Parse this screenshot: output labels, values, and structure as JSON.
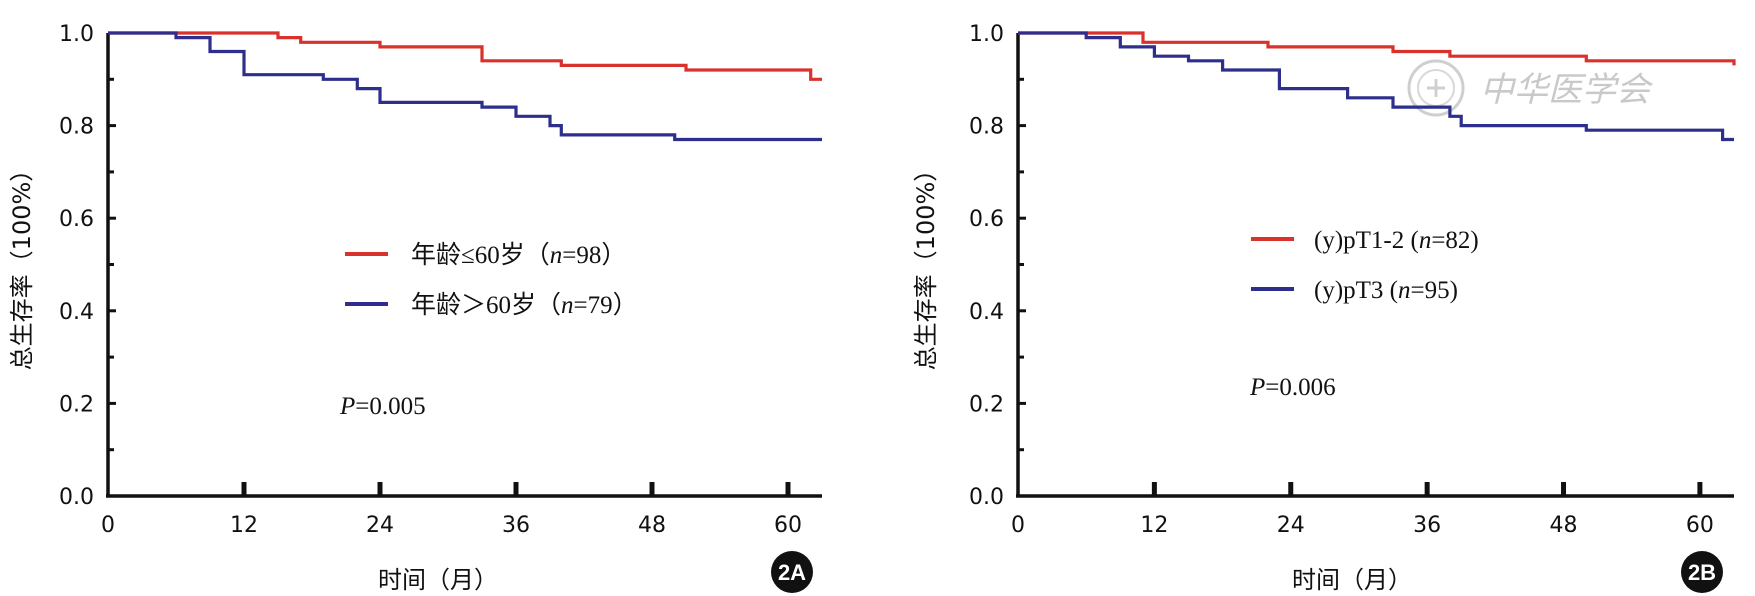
{
  "colors": {
    "red": "#d9312b",
    "blue": "#2e2f8c",
    "axis": "#111111"
  },
  "watermark": {
    "text": "中华医学会",
    "icon": "seal-icon"
  },
  "chart_data": [
    {
      "type": "line",
      "panel": "2A",
      "xlabel": "时间（月）",
      "ylabel": "总生存率（100%）",
      "xticks": [
        0,
        12,
        24,
        36,
        48,
        60
      ],
      "yticks": [
        "0.0",
        "0.2",
        "0.4",
        "0.6",
        "0.8",
        "1.0"
      ],
      "xlim": [
        0,
        63
      ],
      "ylim": [
        0,
        1
      ],
      "pvalue": {
        "label": "P",
        "value": "=0.005"
      },
      "series": [
        {
          "name": "年龄≤60岁",
          "legend_main": "年龄≤60岁（",
          "legend_n": "n",
          "legend_tail": "=98）",
          "color": "red",
          "steps": [
            [
              0,
              1.0
            ],
            [
              15,
              0.99
            ],
            [
              17,
              0.98
            ],
            [
              24,
              0.97
            ],
            [
              33,
              0.94
            ],
            [
              40,
              0.93
            ],
            [
              51,
              0.92
            ],
            [
              62,
              0.9
            ],
            [
              63,
              0.9
            ]
          ]
        },
        {
          "name": "年龄＞60岁",
          "legend_main": "年龄＞60岁（",
          "legend_n": "n",
          "legend_tail": "=79）",
          "color": "blue",
          "steps": [
            [
              0,
              1.0
            ],
            [
              6,
              0.99
            ],
            [
              9,
              0.96
            ],
            [
              12,
              0.91
            ],
            [
              19,
              0.9
            ],
            [
              22,
              0.88
            ],
            [
              24,
              0.85
            ],
            [
              33,
              0.84
            ],
            [
              36,
              0.82
            ],
            [
              39,
              0.8
            ],
            [
              40,
              0.78
            ],
            [
              50,
              0.77
            ],
            [
              63,
              0.77
            ]
          ]
        }
      ]
    },
    {
      "type": "line",
      "panel": "2B",
      "xlabel": "时间（月）",
      "ylabel": "总生存率（100%）",
      "xticks": [
        0,
        12,
        24,
        36,
        48,
        60
      ],
      "yticks": [
        "0.0",
        "0.2",
        "0.4",
        "0.6",
        "0.8",
        "1.0"
      ],
      "xlim": [
        0,
        63
      ],
      "ylim": [
        0,
        1
      ],
      "pvalue": {
        "label": "P",
        "value": "=0.006"
      },
      "series": [
        {
          "name": "(y)pT1-2",
          "legend_main": "(y)pT1-2 (",
          "legend_n": "n",
          "legend_tail": "=82)",
          "color": "red",
          "steps": [
            [
              0,
              1.0
            ],
            [
              11,
              0.98
            ],
            [
              22,
              0.97
            ],
            [
              33,
              0.96
            ],
            [
              38,
              0.95
            ],
            [
              50,
              0.94
            ],
            [
              63,
              0.93
            ]
          ]
        },
        {
          "name": "(y)pT3",
          "legend_main": "(y)pT3 (",
          "legend_n": "n",
          "legend_tail": "=95)",
          "color": "blue",
          "steps": [
            [
              0,
              1.0
            ],
            [
              6,
              0.99
            ],
            [
              9,
              0.97
            ],
            [
              12,
              0.95
            ],
            [
              15,
              0.94
            ],
            [
              18,
              0.92
            ],
            [
              23,
              0.88
            ],
            [
              29,
              0.86
            ],
            [
              33,
              0.84
            ],
            [
              38,
              0.82
            ],
            [
              39,
              0.8
            ],
            [
              50,
              0.79
            ],
            [
              62,
              0.77
            ],
            [
              63,
              0.77
            ]
          ]
        }
      ]
    }
  ]
}
